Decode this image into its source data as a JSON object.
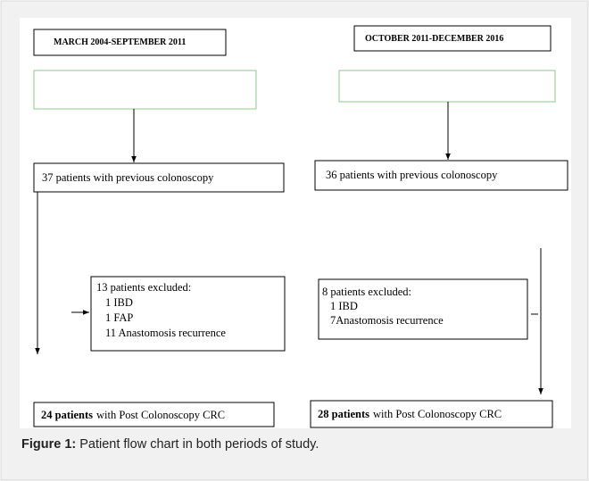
{
  "periods": [
    {
      "header": "MARCH 2004-SEPTEMBER 2011",
      "count_box": "37 patients with previous colonoscopy",
      "excluded": {
        "title": "13 patients excluded:",
        "items": [
          "1 IBD",
          "1 FAP",
          "11 Anastomosis recurrence"
        ]
      },
      "result": {
        "bold": "24 patients",
        "rest": "with Post Colonoscopy CRC"
      }
    },
    {
      "header": "OCTOBER 2011-DECEMBER 2016",
      "count_box": "36 patients with previous colonoscopy",
      "excluded": {
        "title": "8 patients excluded:",
        "items": [
          "1 IBD",
          "7Anastomosis recurrence"
        ]
      },
      "result": {
        "bold": "28 patients",
        "rest": "with Post Colonoscopy CRC"
      }
    }
  ],
  "caption": {
    "label": "Figure 1:",
    "text": "Patient flow chart in both periods of study."
  }
}
